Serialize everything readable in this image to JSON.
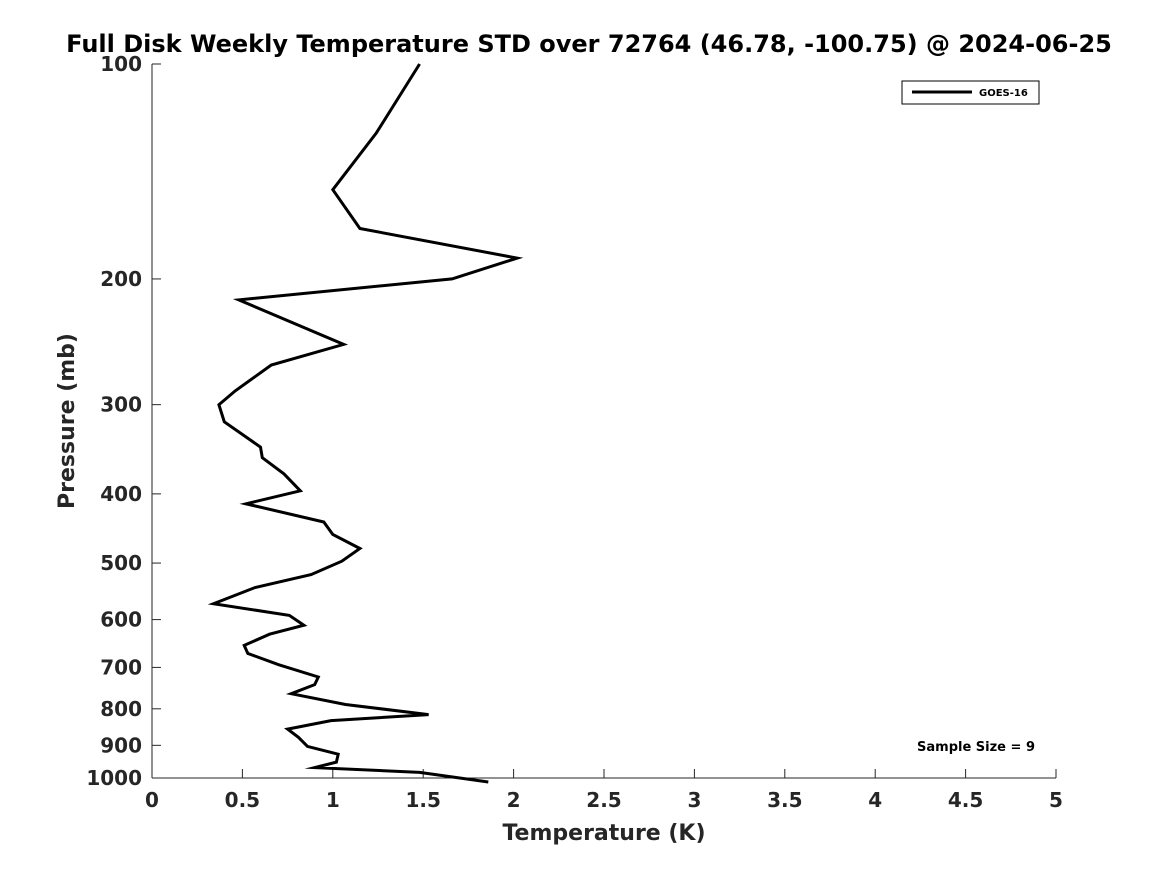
{
  "chart_data": {
    "type": "line",
    "title": "Full Disk Weekly Temperature STD over 72764 (46.78, -100.75) @ 2024-06-25",
    "xlabel": "Temperature (K)",
    "ylabel": "Pressure (mb)",
    "xlim": [
      0,
      5
    ],
    "ylim": [
      100,
      1000
    ],
    "y_scale": "log",
    "y_reversed": true,
    "x_ticks": [
      "0",
      "0.5",
      "1",
      "1.5",
      "2",
      "2.5",
      "3",
      "3.5",
      "4",
      "4.5",
      "5"
    ],
    "y_ticks": [
      "100",
      "200",
      "300",
      "400",
      "500",
      "600",
      "700",
      "800",
      "900",
      "1000"
    ],
    "grid": false,
    "legend_position": "top-right",
    "series": [
      {
        "name": "GOES-16",
        "color": "#000000",
        "points": [
          [
            1.48,
            100
          ],
          [
            1.24,
            125
          ],
          [
            1.0,
            150
          ],
          [
            1.15,
            170
          ],
          [
            2.02,
            187
          ],
          [
            1.66,
            200
          ],
          [
            0.48,
            214
          ],
          [
            1.06,
            247
          ],
          [
            0.66,
            264
          ],
          [
            0.46,
            287
          ],
          [
            0.37,
            300
          ],
          [
            0.4,
            317
          ],
          [
            0.6,
            344
          ],
          [
            0.61,
            356
          ],
          [
            0.73,
            375
          ],
          [
            0.82,
            396
          ],
          [
            0.52,
            413
          ],
          [
            0.95,
            438
          ],
          [
            1.0,
            456
          ],
          [
            1.15,
            477
          ],
          [
            1.05,
            497
          ],
          [
            0.88,
            519
          ],
          [
            0.57,
            541
          ],
          [
            0.34,
            570
          ],
          [
            0.76,
            592
          ],
          [
            0.84,
            611
          ],
          [
            0.65,
            629
          ],
          [
            0.51,
            652
          ],
          [
            0.53,
            669
          ],
          [
            0.7,
            694
          ],
          [
            0.92,
            722
          ],
          [
            0.9,
            740
          ],
          [
            0.77,
            762
          ],
          [
            1.07,
            789
          ],
          [
            1.53,
            815
          ],
          [
            0.99,
            831
          ],
          [
            0.75,
            854
          ],
          [
            0.81,
            877
          ],
          [
            0.86,
            903
          ],
          [
            1.03,
            926
          ],
          [
            1.02,
            950
          ],
          [
            0.9,
            967
          ],
          [
            1.48,
            982
          ],
          [
            1.86,
            1013
          ]
        ]
      }
    ],
    "annotation": "Sample Size = 9"
  }
}
